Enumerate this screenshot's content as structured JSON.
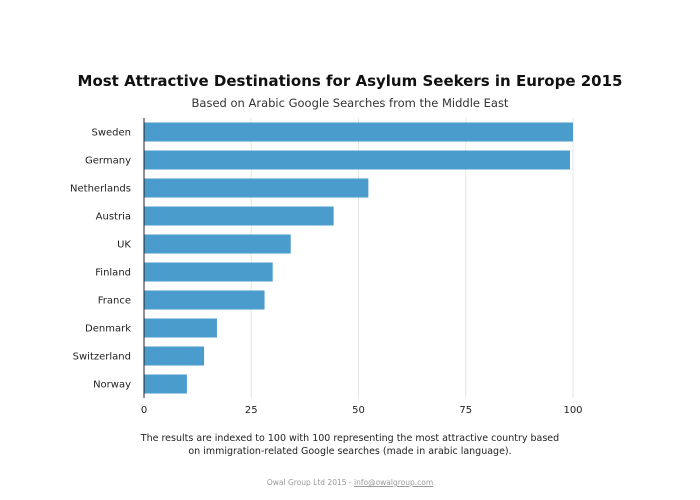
{
  "chart_data": {
    "type": "bar",
    "orientation": "horizontal",
    "title": "Most Attractive Destinations for Asylum Seekers in Europe 2015",
    "subtitle": "Based on Arabic Google Searches from the Middle East",
    "categories": [
      "Sweden",
      "Germany",
      "Netherlands",
      "Austria",
      "UK",
      "Finland",
      "France",
      "Denmark",
      "Switzerland",
      "Norway"
    ],
    "values": [
      100,
      99.3,
      52.3,
      44.2,
      34.2,
      30,
      28.1,
      17,
      14,
      10
    ],
    "xlim": [
      0,
      100
    ],
    "xticks": [
      0,
      25,
      50,
      75,
      100
    ],
    "xlabel": "",
    "ylabel": "",
    "grid": true,
    "bar_color": "#4a9ccc"
  },
  "note": {
    "line1": "The results are indexed to 100 with 100 representing the most attractive country based",
    "line2": "on immigration-related Google searches (made in arabic language)."
  },
  "footer": {
    "text": "Owal Group Ltd 2015 - ",
    "link": "info@owalgroup.com"
  }
}
